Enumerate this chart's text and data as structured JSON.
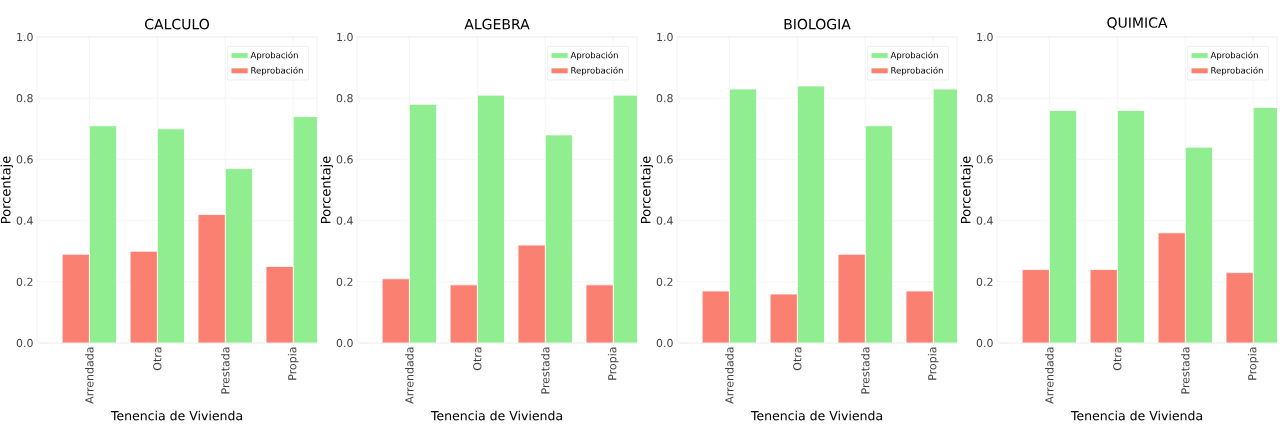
{
  "chart_data": [
    {
      "type": "bar",
      "title": "CALCULO",
      "xlabel": "Tenencia de Vivienda",
      "ylabel": "Porcentaje",
      "categories": [
        "Arrendada",
        "Otra",
        "Prestada",
        "Propia"
      ],
      "series": [
        {
          "name": "Aprobación",
          "color": "#90ee90",
          "values": [
            0.71,
            0.7,
            0.57,
            0.74
          ]
        },
        {
          "name": "Reprobación",
          "color": "#fa8072",
          "values": [
            0.29,
            0.3,
            0.42,
            0.25
          ]
        }
      ],
      "ylim": [
        0,
        1
      ],
      "yticks": [
        {
          "value": 0,
          "label": "0.0"
        },
        {
          "value": 0.2,
          "label": "0.2"
        },
        {
          "value": 0.4,
          "label": "0.4"
        },
        {
          "value": 0.6,
          "label": "0.6"
        },
        {
          "value": 0.8,
          "label": "0.8"
        },
        {
          "value": 1,
          "label": "1.0"
        }
      ],
      "grid": true,
      "legend": "top right"
    },
    {
      "type": "bar",
      "title": "ALGEBRA",
      "xlabel": "Tenencia de Vivienda",
      "ylabel": "Porcentaje",
      "categories": [
        "Arrendada",
        "Otra",
        "Prestada",
        "Propia"
      ],
      "series": [
        {
          "name": "Aprobación",
          "color": "#90ee90",
          "values": [
            0.78,
            0.81,
            0.68,
            0.81
          ]
        },
        {
          "name": "Reprobación",
          "color": "#fa8072",
          "values": [
            0.21,
            0.19,
            0.32,
            0.19
          ]
        }
      ],
      "ylim": [
        0,
        1
      ],
      "yticks": [
        {
          "value": 0,
          "label": "0.0"
        },
        {
          "value": 0.2,
          "label": "0.2"
        },
        {
          "value": 0.4,
          "label": "0.4"
        },
        {
          "value": 0.6,
          "label": "0.6"
        },
        {
          "value": 0.8,
          "label": "0.8"
        },
        {
          "value": 1,
          "label": "1.0"
        }
      ],
      "grid": true,
      "legend": "top right"
    },
    {
      "type": "bar",
      "title": "BIOLOGIA",
      "xlabel": "Tenencia de Vivienda",
      "ylabel": "Porcentaje",
      "categories": [
        "Arrendada",
        "Otra",
        "Prestada",
        "Propia"
      ],
      "series": [
        {
          "name": "Aprobación",
          "color": "#90ee90",
          "values": [
            0.83,
            0.84,
            0.71,
            0.83
          ]
        },
        {
          "name": "Reprobación",
          "color": "#fa8072",
          "values": [
            0.17,
            0.16,
            0.29,
            0.17
          ]
        }
      ],
      "ylim": [
        0,
        1
      ],
      "yticks": [
        {
          "value": 0,
          "label": "0.0"
        },
        {
          "value": 0.2,
          "label": "0.2"
        },
        {
          "value": 0.4,
          "label": "0.4"
        },
        {
          "value": 0.6,
          "label": "0.6"
        },
        {
          "value": 0.8,
          "label": "0.8"
        },
        {
          "value": 1,
          "label": "1.0"
        }
      ],
      "grid": true,
      "legend": "top right"
    },
    {
      "type": "bar",
      "title": "QUIMICA",
      "xlabel": "Tenencia de Vivienda",
      "ylabel": "Porcentaje",
      "categories": [
        "Arrendada",
        "Otra",
        "Prestada",
        "Propia"
      ],
      "series": [
        {
          "name": "Aprobación",
          "color": "#90ee90",
          "values": [
            0.76,
            0.76,
            0.64,
            0.77
          ]
        },
        {
          "name": "Reprobación",
          "color": "#fa8072",
          "values": [
            0.24,
            0.24,
            0.36,
            0.23
          ]
        }
      ],
      "ylim": [
        0,
        1
      ],
      "yticks": [
        {
          "value": 0,
          "label": "0.0"
        },
        {
          "value": 0.2,
          "label": "0.2"
        },
        {
          "value": 0.4,
          "label": "0.4"
        },
        {
          "value": 0.6,
          "label": "0.6"
        },
        {
          "value": 0.8,
          "label": "0.8"
        },
        {
          "value": 1,
          "label": "1.0"
        }
      ],
      "grid": true,
      "legend": "top right"
    }
  ]
}
